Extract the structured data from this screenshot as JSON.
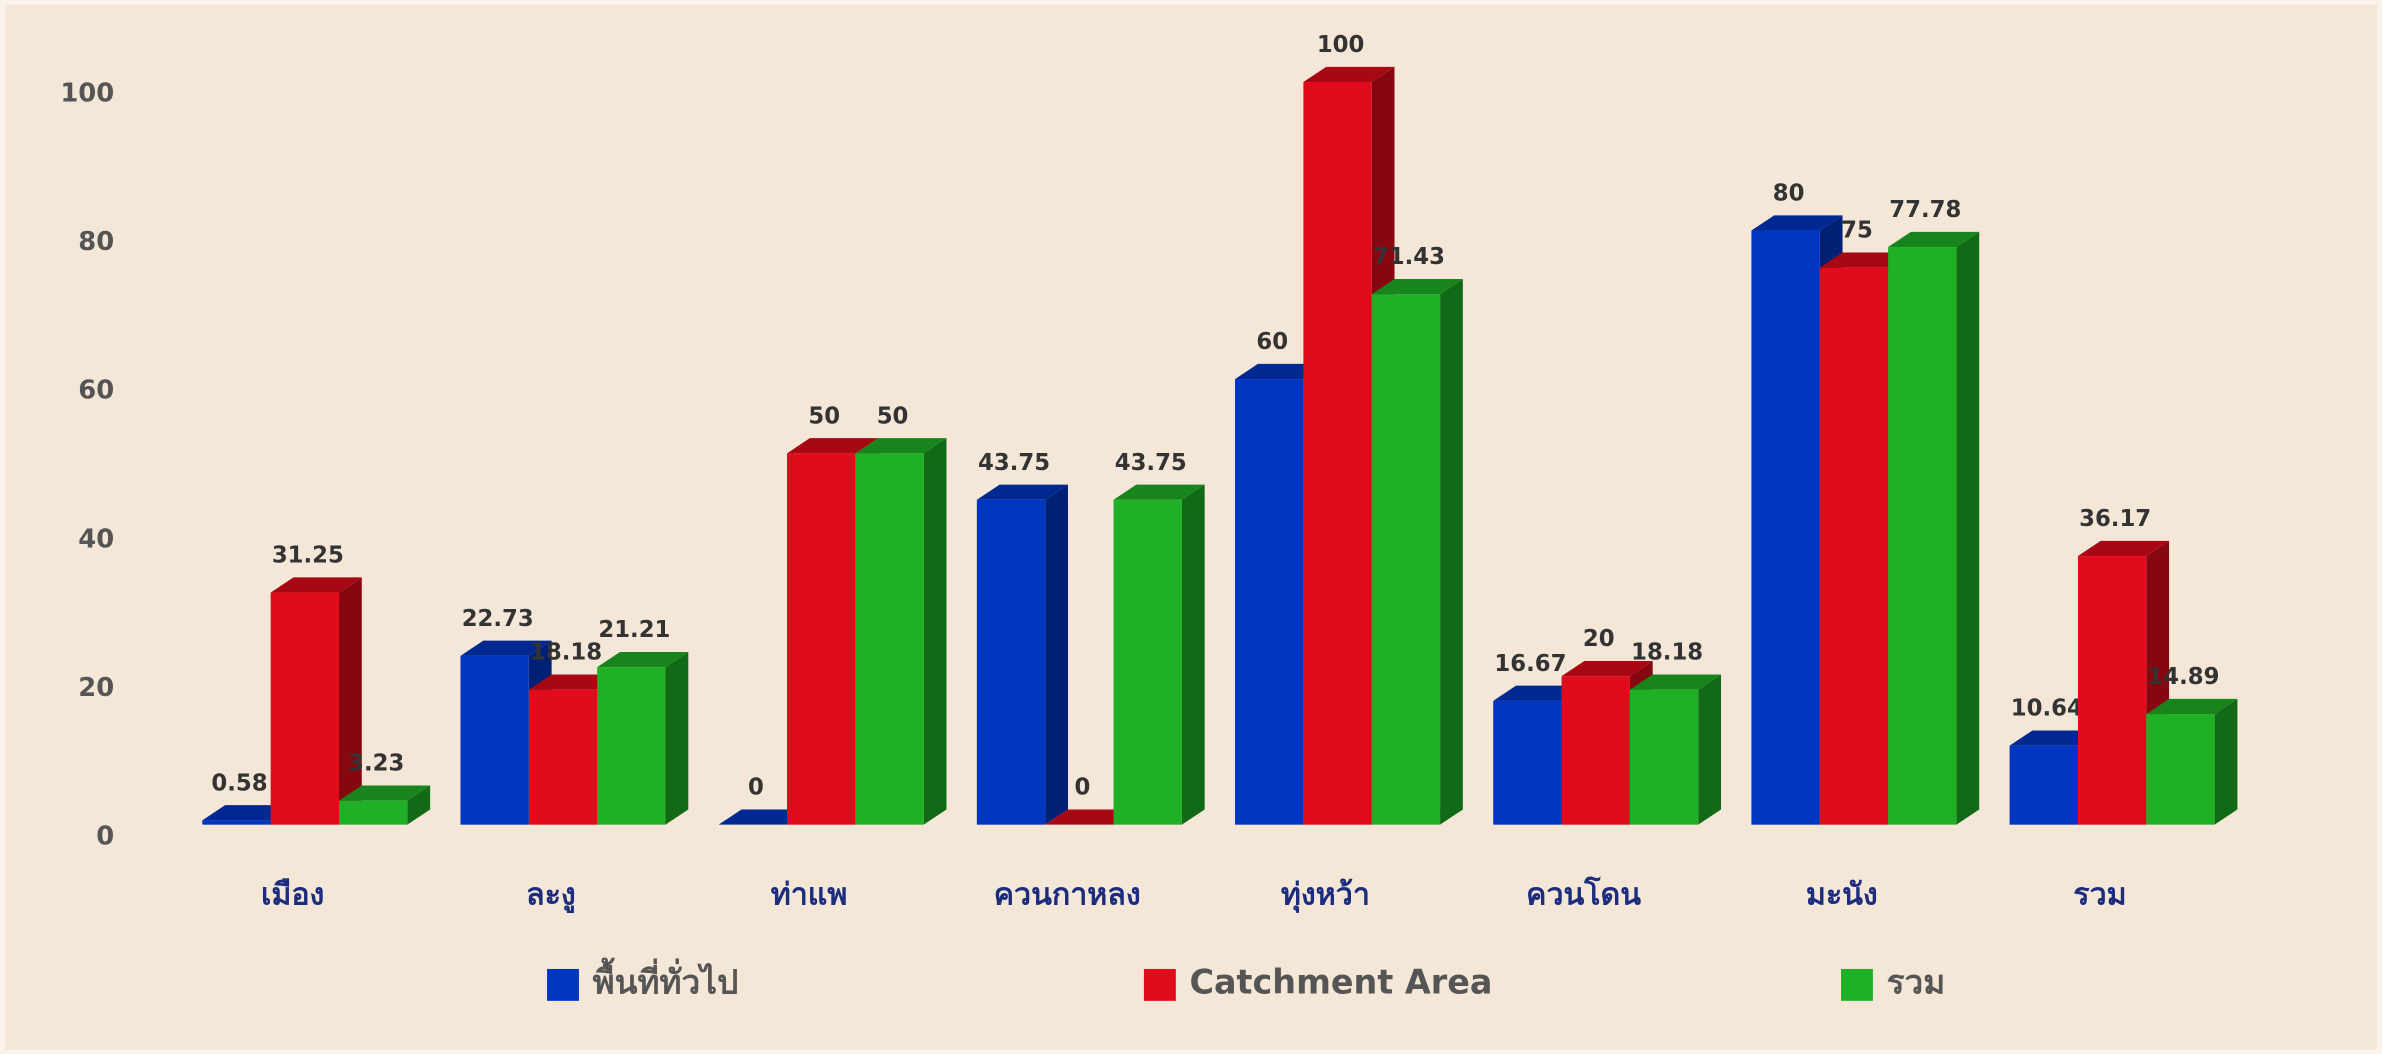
{
  "chart_data": {
    "type": "bar",
    "categories": [
      "เมือง",
      "ละงู",
      "ท่าแพ",
      "ควนกาหลง",
      "ทุ่งหว้า",
      "ควนโดน",
      "มะนัง",
      "รวม"
    ],
    "series": [
      {
        "name": "พื้นที่ทั่วไป",
        "color": "#0035c2",
        "values": [
          0.58,
          22.73,
          0,
          43.75,
          60,
          16.67,
          80,
          10.64
        ]
      },
      {
        "name": "Catchment Area",
        "color": "#e00b1b",
        "values": [
          31.25,
          18.18,
          50,
          0,
          100,
          20,
          75,
          36.17
        ]
      },
      {
        "name": "รวม",
        "color": "#20b025",
        "values": [
          3.23,
          21.21,
          50,
          43.75,
          71.43,
          18.18,
          77.78,
          14.89
        ]
      }
    ],
    "ylim": [
      0,
      100
    ],
    "yticks": [
      0,
      20,
      40,
      60,
      80,
      100
    ],
    "grid": false,
    "legend": "bottom"
  }
}
